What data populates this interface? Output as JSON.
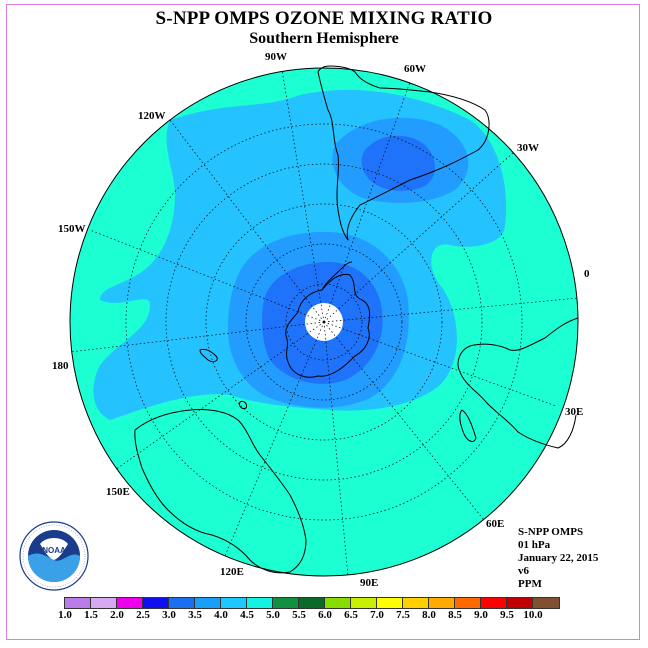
{
  "title": "S-NPP OMPS OZONE MIXING RATIO",
  "subtitle": "Southern Hemisphere",
  "longitude_labels": {
    "lon_90w": "90W",
    "lon_60w": "60W",
    "lon_120w": "120W",
    "lon_30w": "30W",
    "lon_150w": "150W",
    "lon_0": "0",
    "lon_180": "180",
    "lon_30e": "30E",
    "lon_150e": "150E",
    "lon_60e": "60E",
    "lon_120e": "120E",
    "lon_90e": "90E"
  },
  "info": {
    "instrument": "S-NPP OMPS",
    "level": "01 hPa",
    "date": "January 22, 2015",
    "version": "v6",
    "units": "PPM"
  },
  "logo": {
    "text": "NOAA",
    "ring_text": "NATIONAL OCEANIC AND ATMOSPHERIC ADMINISTRATION · U.S. DEPARTMENT OF COMMERCE"
  },
  "colorbar": {
    "ticks": [
      "1.0",
      "1.5",
      "2.0",
      "2.5",
      "3.0",
      "3.5",
      "4.0",
      "4.5",
      "5.0",
      "5.5",
      "6.0",
      "6.5",
      "7.0",
      "7.5",
      "8.0",
      "8.5",
      "9.0",
      "9.5",
      "10.0"
    ],
    "colors": [
      "#b97ce8",
      "#d7a9f0",
      "#ee00ee",
      "#1010ee",
      "#1a6ef0",
      "#18a0f8",
      "#1ec8ff",
      "#16f2e0",
      "#109040",
      "#0a6a28",
      "#88dd00",
      "#c8ee00",
      "#ffff00",
      "#ffd000",
      "#ffaa00",
      "#ff6a00",
      "#ff0000",
      "#c00000",
      "#805030"
    ]
  },
  "map_colors": {
    "c45_50": "#1bffd2",
    "c40_45": "#24c3ff",
    "c35_40": "#229dff",
    "c30_35": "#1f73fb",
    "polar_gap": "#ffffff",
    "coastline": "#000000",
    "gridline": "#000000"
  }
}
